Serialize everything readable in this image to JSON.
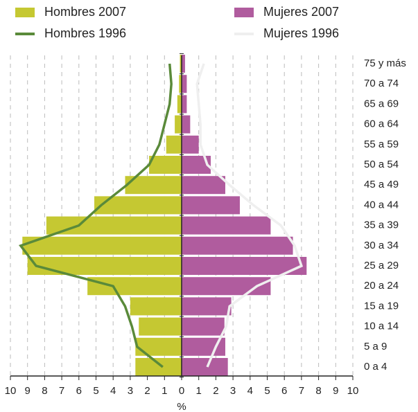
{
  "chart_data": {
    "type": "pyramid",
    "categories": [
      "0 a 4",
      "5 a 9",
      "10 a 14",
      "15 a 19",
      "20 a 24",
      "25 a 29",
      "30 a 34",
      "35 a 39",
      "40 a 44",
      "45 a 49",
      "50 a 54",
      "55 a 59",
      "60 a 64",
      "65 a 69",
      "70 a 74",
      "75 y más"
    ],
    "series": [
      {
        "name": "Hombres 2007",
        "kind": "bar",
        "color": "#c5c832",
        "values": [
          2.7,
          2.7,
          2.5,
          3.0,
          5.5,
          9.0,
          9.3,
          7.9,
          5.1,
          3.3,
          1.9,
          0.9,
          0.4,
          0.25,
          0.15,
          0.1
        ]
      },
      {
        "name": "Hombres 1996",
        "kind": "line",
        "color": "#5a8a3a",
        "values": [
          1.1,
          2.6,
          2.9,
          3.3,
          4.0,
          8.5,
          9.4,
          6.0,
          4.7,
          3.2,
          1.9,
          1.3,
          1.0,
          0.7,
          0.6,
          0.7
        ]
      },
      {
        "name": "Mujeres 2007",
        "kind": "bar",
        "color": "#b05c9e",
        "values": [
          2.7,
          2.55,
          2.5,
          2.9,
          5.2,
          7.3,
          6.5,
          5.2,
          3.4,
          2.55,
          1.7,
          1.0,
          0.5,
          0.3,
          0.3,
          0.2
        ]
      },
      {
        "name": "Mujeres 1996",
        "kind": "line",
        "color": "#efefef",
        "values": [
          1.5,
          2.0,
          2.6,
          2.8,
          4.4,
          7.0,
          6.6,
          5.8,
          4.2,
          2.8,
          1.5,
          1.1,
          1.1,
          1.0,
          0.9,
          1.3
        ]
      }
    ],
    "xlabel": "%",
    "xlim": [
      -10,
      10
    ],
    "xticks": [
      {
        "value": -10,
        "label": "10"
      },
      {
        "value": -9,
        "label": "9"
      },
      {
        "value": -8,
        "label": "8"
      },
      {
        "value": -7,
        "label": "7"
      },
      {
        "value": -6,
        "label": "6"
      },
      {
        "value": -5,
        "label": "5"
      },
      {
        "value": -4,
        "label": "4"
      },
      {
        "value": -3,
        "label": "3"
      },
      {
        "value": -2,
        "label": "2"
      },
      {
        "value": -1,
        "label": "1"
      },
      0,
      1,
      2,
      3,
      4,
      5,
      6,
      7,
      8,
      9,
      10
    ],
    "grid": true
  }
}
